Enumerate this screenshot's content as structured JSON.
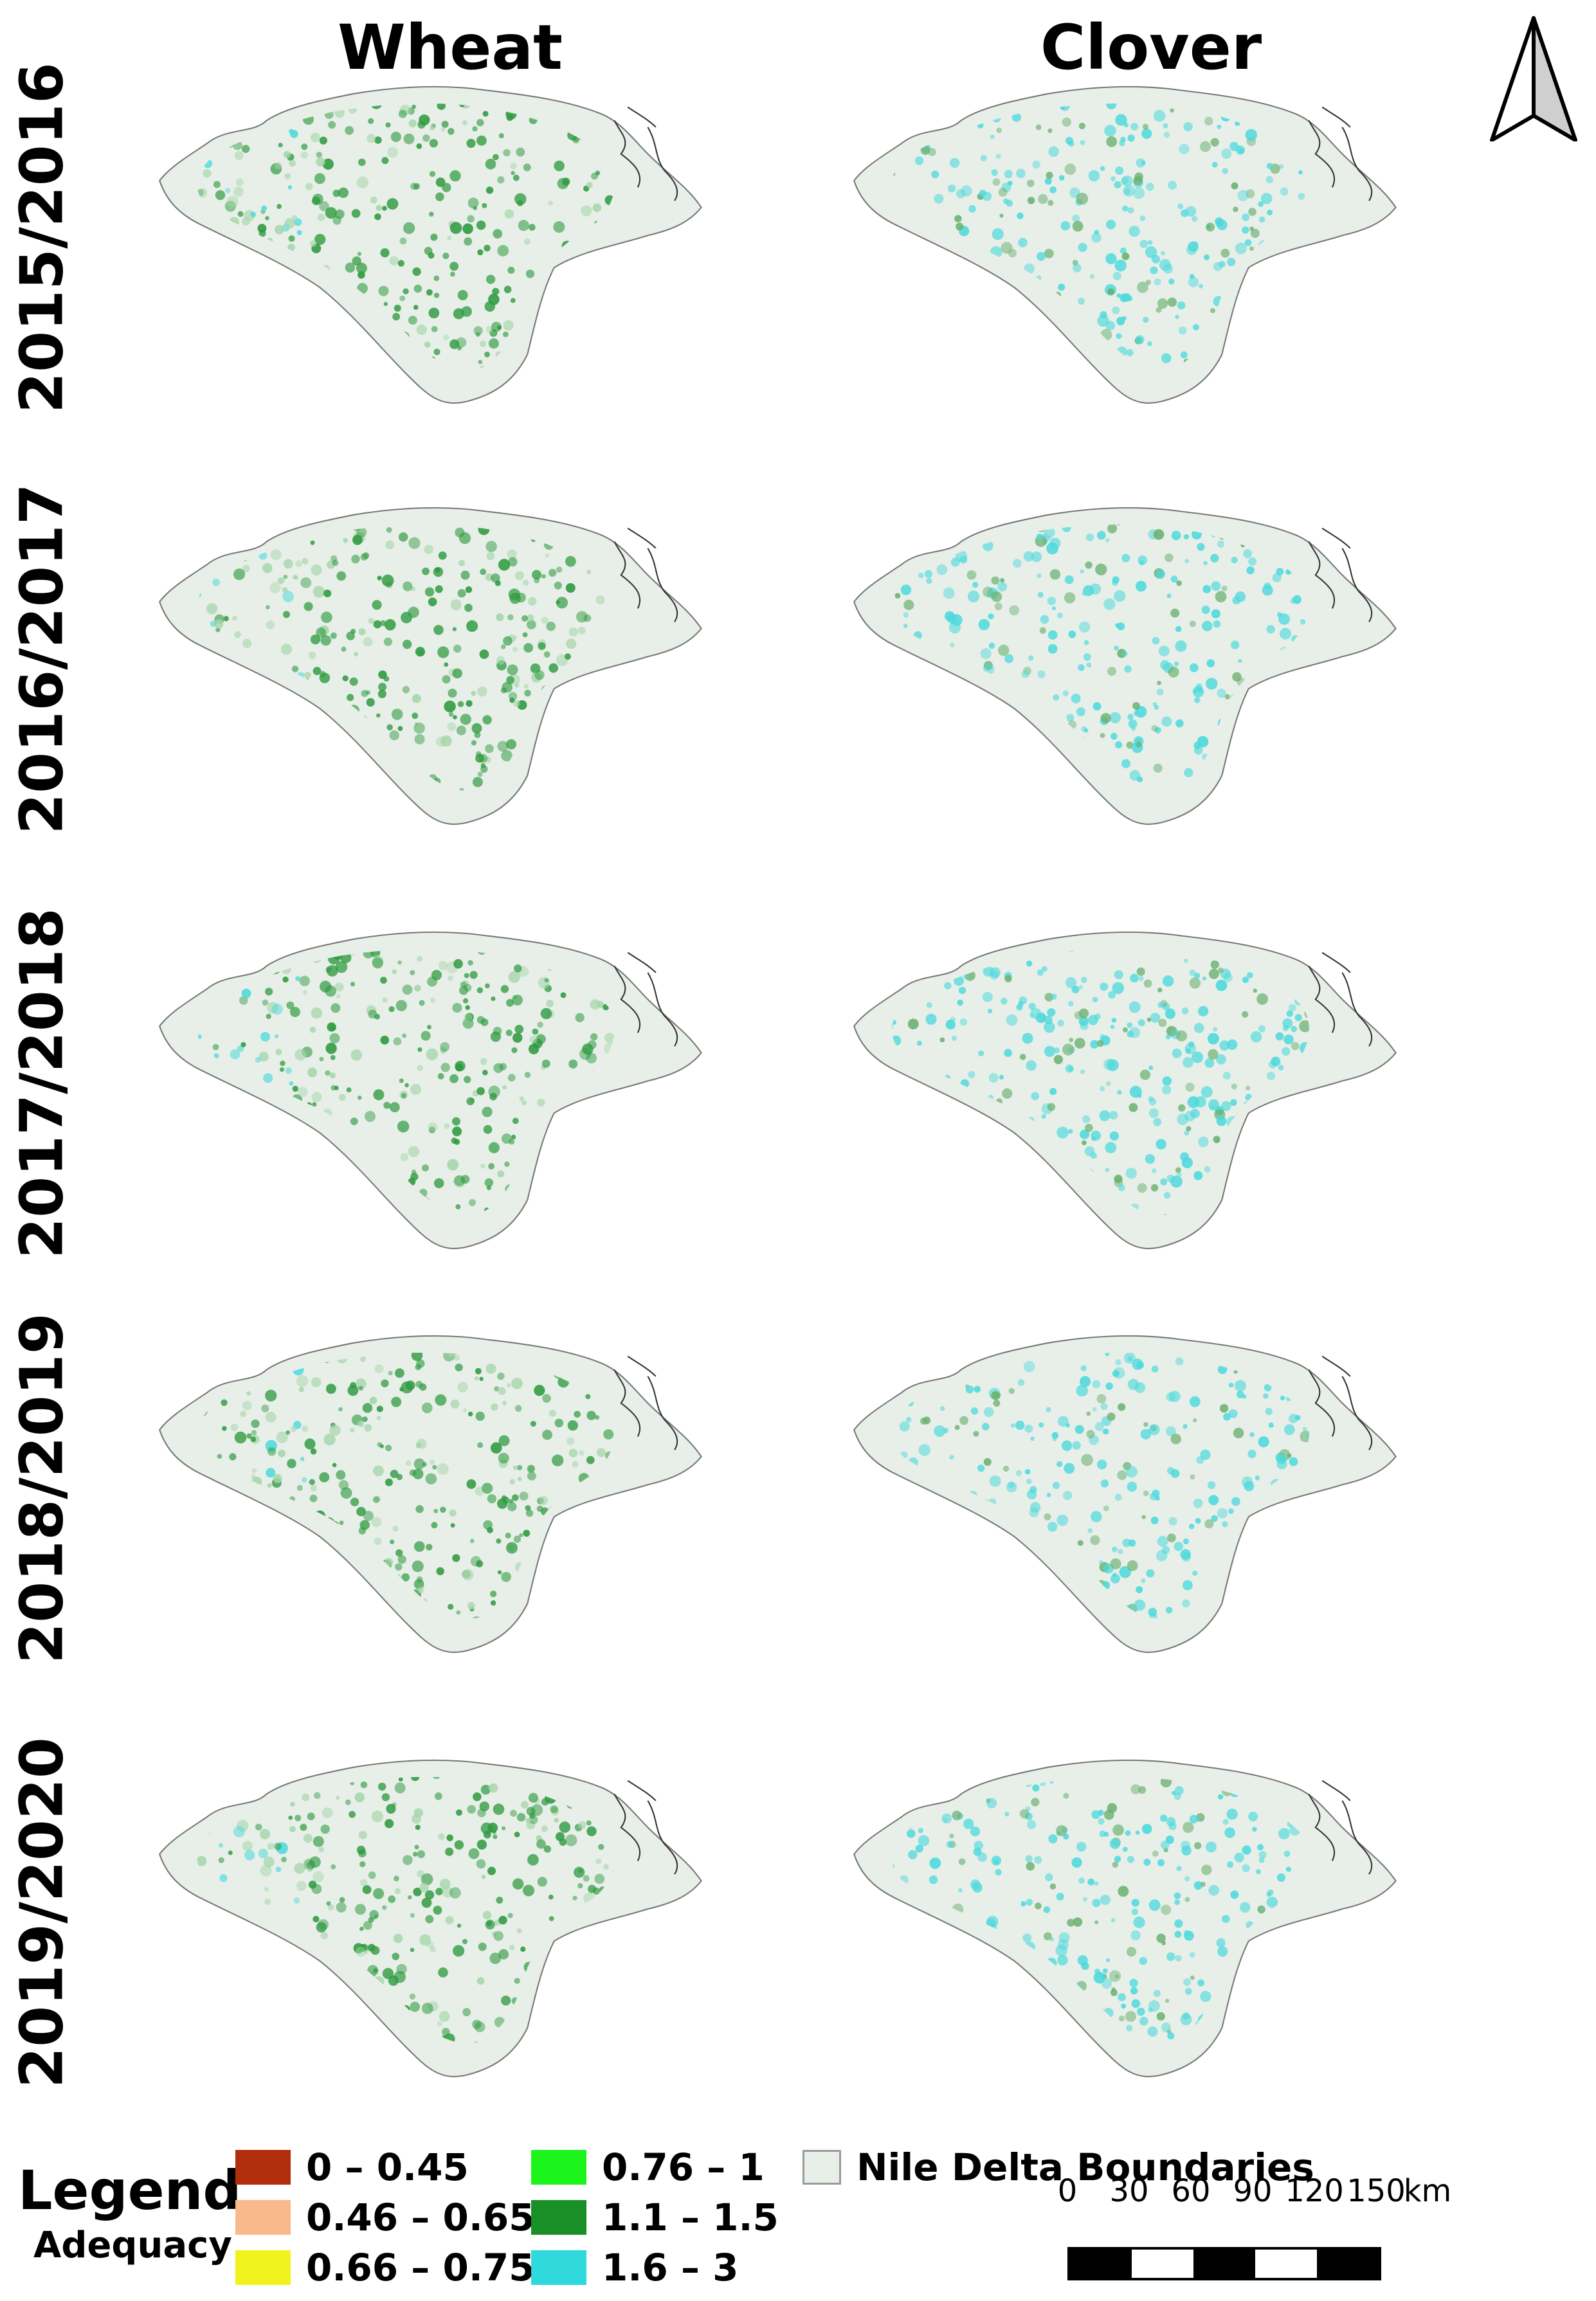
{
  "columns": [
    "Wheat",
    "Clover"
  ],
  "rows": [
    "2015/2016",
    "2016/2017",
    "2017/2018",
    "2018/2019",
    "2019/2020"
  ],
  "legend": {
    "title": "Legend",
    "subtitle": "Adequacy",
    "classes": [
      {
        "label": "0 – 0.45",
        "color": "#b22d0c"
      },
      {
        "label": "0.46 – 0.65",
        "color": "#f9b98a"
      },
      {
        "label": "0.66 – 0.75",
        "color": "#f2f21e"
      },
      {
        "label": "0.76 – 1",
        "color": "#1bf51b"
      },
      {
        "label": "1.1 – 1.5",
        "color": "#198f27"
      },
      {
        "label": "1.6 – 3",
        "color": "#2fd9dc"
      }
    ],
    "boundary": {
      "label": "Nile Delta Boundaries",
      "color": "#e8efe9"
    }
  },
  "scale_bar": {
    "ticks": [
      "0",
      "30",
      "60",
      "90",
      "120",
      "150"
    ],
    "unit": "km"
  },
  "north_arrow": {
    "icon": "north-arrow-icon"
  },
  "colors": {
    "wheat_main": "#2e9a3f",
    "wheat_light": "#a6d6aa",
    "clover_main": "#4dd9dc",
    "clover_green": "#6ab06f"
  }
}
